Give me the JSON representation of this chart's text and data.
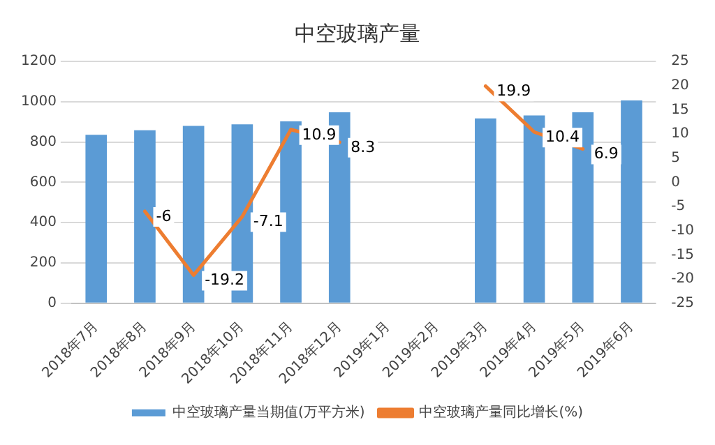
{
  "chart_data": {
    "type": "bar",
    "title": "中空玻璃产量",
    "categories": [
      "2018年7月",
      "2018年8月",
      "2018年9月",
      "2018年10月",
      "2018年11月",
      "2018年12月",
      "2019年1月",
      "2019年2月",
      "2019年3月",
      "2019年4月",
      "2019年5月",
      "2019年6月"
    ],
    "series": [
      {
        "name": "中空玻璃产量当期值(万平方米)",
        "color": "#5b9bd5",
        "values": [
          836,
          858,
          880,
          888,
          902,
          947,
          null,
          null,
          917,
          932,
          947,
          1006
        ]
      },
      {
        "name": "中空玻璃产量同比增长(%)",
        "type": "line",
        "axis": "y2",
        "color": "#ed7d31",
        "marker": "none",
        "values": [
          null,
          -6,
          -19.2,
          -7.1,
          10.9,
          8.3,
          null,
          null,
          19.9,
          10.4,
          6.9,
          null
        ],
        "value_labels": [
          null,
          "-6",
          "-19.2",
          "-7.1",
          "10.9",
          "8.3",
          null,
          null,
          "19.9",
          "10.4",
          "6.9",
          null
        ]
      }
    ],
    "ylim": [
      0,
      1200
    ],
    "yticks": [
      0,
      200,
      400,
      600,
      800,
      1000,
      1200
    ],
    "y2lim": [
      -25,
      25
    ],
    "y2ticks": [
      -25,
      -20,
      -15,
      -10,
      -5,
      0,
      5,
      10,
      15,
      20,
      25
    ],
    "grid": "y",
    "legend": "bottom"
  }
}
